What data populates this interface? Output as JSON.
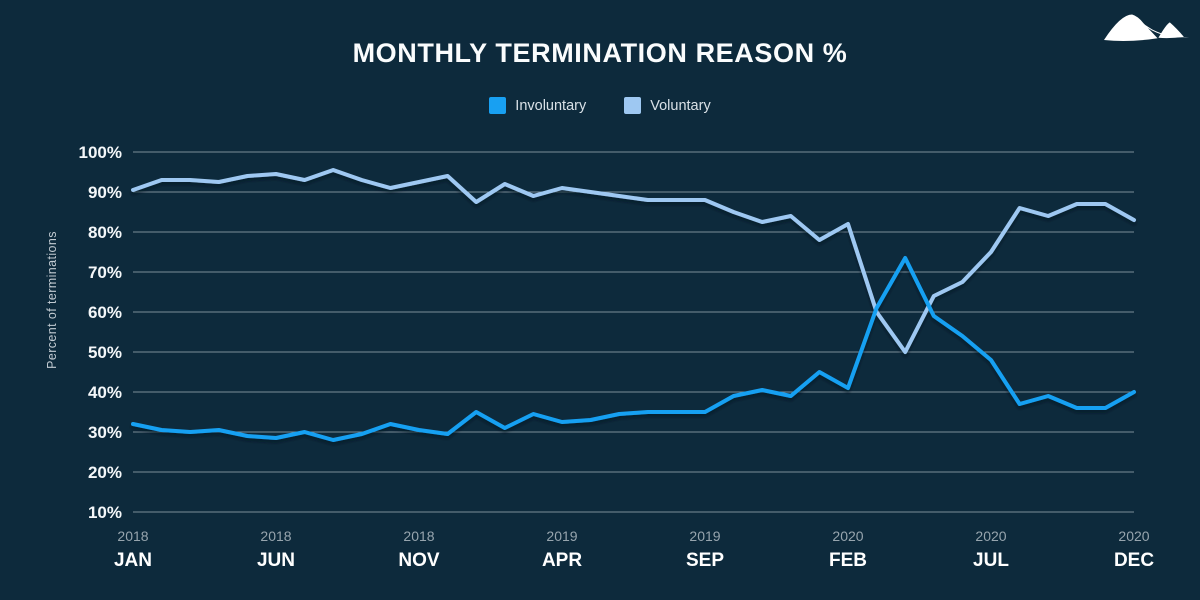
{
  "header": {
    "title": "MONTHLY TERMINATION REASON %"
  },
  "icons": {
    "logo": "dunes-logo-icon"
  },
  "colors": {
    "background": "#0D2A3C",
    "involuntary": "#18A0F2",
    "voluntary": "#9EC8F2",
    "gridline": "#D7DEE4",
    "year_label": "#97A5AE",
    "month_label": "#FFFFFF"
  },
  "chart_data": {
    "type": "line",
    "title": "MONTHLY TERMINATION REASON %",
    "xlabel": "",
    "ylabel": "Percent of terminations",
    "ylim": [
      10,
      100
    ],
    "ytick_step": 10,
    "ytick_suffix": "%",
    "yticks": [
      100,
      90,
      80,
      70,
      60,
      50,
      40,
      30,
      20,
      10
    ],
    "grid": true,
    "legend_position": "top",
    "categories": [
      "Jan 2018",
      "Feb 2018",
      "Mar 2018",
      "Apr 2018",
      "May 2018",
      "Jun 2018",
      "Jul 2018",
      "Aug 2018",
      "Sep 2018",
      "Oct 2018",
      "Nov 2018",
      "Dec 2018",
      "Jan 2019",
      "Feb 2019",
      "Mar 2019",
      "Apr 2019",
      "May 2019",
      "Jun 2019",
      "Jul 2019",
      "Aug 2019",
      "Sep 2019",
      "Oct 2019",
      "Nov 2019",
      "Dec 2019",
      "Jan 2020",
      "Feb 2020",
      "Mar 2020",
      "Apr 2020",
      "May 2020",
      "Jun 2020",
      "Jul 2020",
      "Aug 2020",
      "Sep 2020",
      "Oct 2020",
      "Nov 2020",
      "Dec 2020"
    ],
    "xticks": [
      {
        "index": 0,
        "year": "2018",
        "month": "JAN"
      },
      {
        "index": 5,
        "year": "2018",
        "month": "JUN"
      },
      {
        "index": 10,
        "year": "2018",
        "month": "NOV"
      },
      {
        "index": 15,
        "year": "2019",
        "month": "APR"
      },
      {
        "index": 20,
        "year": "2019",
        "month": "SEP"
      },
      {
        "index": 25,
        "year": "2020",
        "month": "FEB"
      },
      {
        "index": 30,
        "year": "2020",
        "month": "JUL"
      },
      {
        "index": 35,
        "year": "2020",
        "month": "DEC"
      }
    ],
    "series": [
      {
        "name": "Involuntary",
        "color": "#18A0F2",
        "values": [
          32,
          30.5,
          30,
          30.5,
          29,
          28.5,
          30,
          28,
          29.5,
          32,
          30.5,
          29.5,
          35,
          31,
          34.5,
          32.5,
          33,
          34.5,
          35,
          35,
          35,
          39,
          40.5,
          39,
          45,
          41,
          61,
          73.5,
          59,
          54,
          48,
          37,
          39,
          36,
          36,
          40
        ]
      },
      {
        "name": "Voluntary",
        "color": "#9EC8F2",
        "values": [
          90.5,
          93,
          93,
          92.5,
          94,
          94.5,
          93,
          95.5,
          93,
          91,
          92.5,
          94,
          87.5,
          92,
          89,
          91,
          90,
          89,
          88,
          88,
          88,
          85,
          82.5,
          84,
          78,
          82,
          60,
          50,
          64,
          67.5,
          75,
          86,
          84,
          87,
          87,
          83
        ]
      }
    ]
  }
}
